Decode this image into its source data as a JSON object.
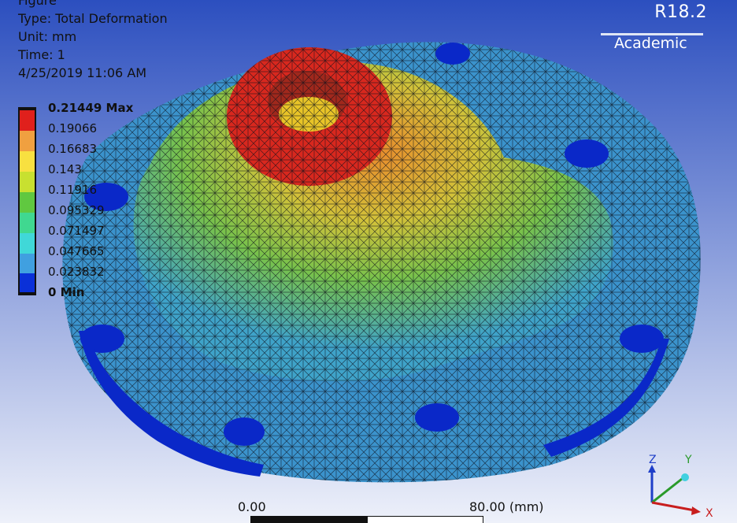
{
  "figure": {
    "title": "Figure",
    "type": "Type: Total Deformation",
    "unit": "Unit: mm",
    "time": "Time: 1",
    "date": "4/25/2019 11:06 AM"
  },
  "version": {
    "release": "R18.2",
    "edition": "Academic"
  },
  "legend": {
    "levels": [
      "0.21449 Max",
      "0.19066",
      "0.16683",
      "0.143",
      "0.11916",
      "0.095329",
      "0.071497",
      "0.047665",
      "0.023832",
      "0 Min"
    ],
    "colors": [
      "#e0201c",
      "#f0a040",
      "#f8e040",
      "#c8e030",
      "#60c840",
      "#40d890",
      "#40d8d8",
      "#40a0e0",
      "#0a30d8"
    ]
  },
  "scale_bar": {
    "left_label": "0.00",
    "right_label": "80.00 (mm)"
  },
  "triad": {
    "z": "Z",
    "y": "Y",
    "x": "X"
  }
}
